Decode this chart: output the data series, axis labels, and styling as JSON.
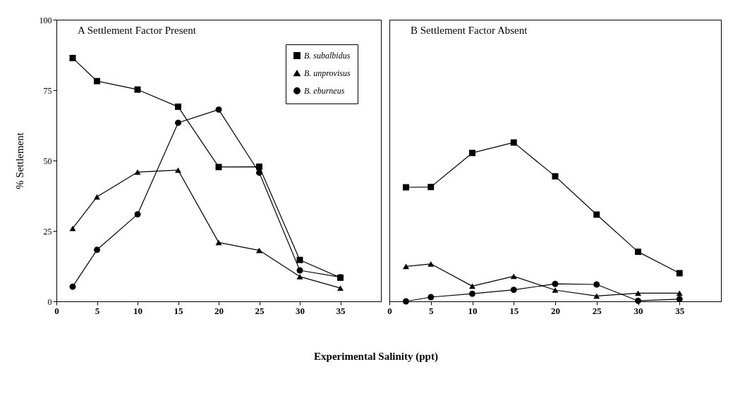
{
  "chart_data": [
    {
      "type": "line",
      "title": "A  Settlement Factor Present",
      "xlabel": "Experimental Salinity (ppt)",
      "ylabel": "% Settlement",
      "x": [
        2,
        5,
        10,
        15,
        20,
        25,
        30,
        35
      ],
      "xlim": [
        0,
        40
      ],
      "xticks": [
        0,
        5,
        10,
        15,
        20,
        25,
        30,
        35
      ],
      "ylim": [
        0,
        100
      ],
      "yticks": [
        0,
        25,
        50,
        75,
        100
      ],
      "grid": false,
      "legend": "top right",
      "series": [
        {
          "name": "B. subalbidus",
          "color": "#000000",
          "marker": "square",
          "values": [
            86.4,
            78.2,
            75.2,
            69.1,
            47.7,
            47.8,
            14.7,
            8.4
          ]
        },
        {
          "name": "B. unprovisus",
          "color": "#000000",
          "marker": "triangle",
          "values": [
            25.9,
            37.1,
            45.9,
            46.6,
            20.9,
            18.1,
            8.8,
            4.7
          ]
        },
        {
          "name": "B. eburneus",
          "color": "#000000",
          "marker": "circle",
          "values": [
            5.2,
            18.3,
            30.9,
            63.4,
            68.1,
            45.7,
            11,
            8.6
          ]
        }
      ]
    },
    {
      "type": "line",
      "title": "B  Settlement Factor Absent",
      "x": [
        2,
        5,
        10,
        15,
        20,
        25,
        30,
        35
      ],
      "xlim": [
        0,
        40
      ],
      "xticks": [
        0,
        5,
        10,
        15,
        20,
        25,
        30,
        35
      ],
      "ylim": [
        0,
        100
      ],
      "yticks": [
        0,
        25,
        50,
        75,
        100
      ],
      "grid": false,
      "tick_labels": "x",
      "series": [
        {
          "color": "#000000",
          "marker": "square",
          "values": [
            40.5,
            40.6,
            52.7,
            56.4,
            44.4,
            30.8,
            17.6,
            10
          ]
        },
        {
          "color": "#000000",
          "marker": "triangle",
          "values": [
            12.4,
            13.3,
            5.4,
            8.9,
            4,
            1.9,
            2.9,
            2.9
          ]
        },
        {
          "color": "#000000",
          "marker": "circle",
          "values": [
            0,
            1.5,
            2.7,
            4.1,
            6.2,
            6,
            0.2,
            0.8
          ]
        }
      ]
    }
  ]
}
